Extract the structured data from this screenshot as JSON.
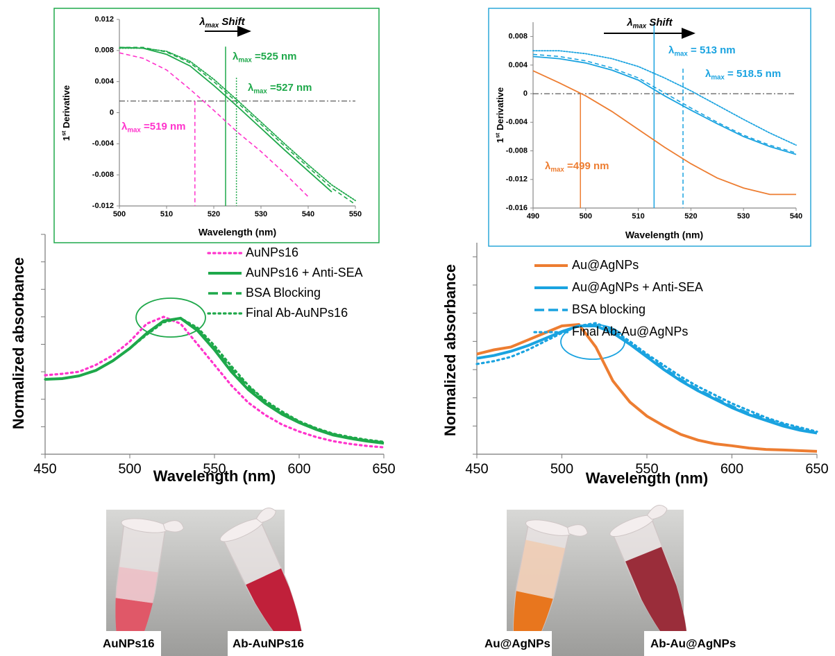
{
  "chart_data": [
    {
      "type": "line",
      "title": {
        "text": "λ",
        "sub": "max",
        "tail": " Shift"
      },
      "x_label": "Wavelength (nm)",
      "y_label": {
        "text": "1",
        "sup": "st",
        "tail": " Derivative"
      },
      "frame_color": "#1ea84a",
      "x": [
        500,
        505,
        510,
        515,
        520,
        525,
        530,
        535,
        540,
        545,
        550
      ],
      "xlim": [
        500,
        550
      ],
      "xticks": [
        500,
        510,
        520,
        530,
        540,
        550
      ],
      "ylim": [
        -0.012,
        0.012
      ],
      "yticks": [
        -0.012,
        -0.008,
        -0.004,
        0,
        0.004,
        0.008,
        0.012
      ],
      "hline": 0.0015,
      "series": [
        {
          "color": "#ff33cc",
          "style": "dashed",
          "values": [
            0.0077,
            0.007,
            0.0055,
            0.003,
            0.0003,
            -0.0025,
            -0.005,
            -0.0078,
            -0.0108,
            null,
            null
          ]
        },
        {
          "color": "#1ea84a",
          "style": "solid",
          "values": [
            0.0084,
            0.0083,
            0.0075,
            0.006,
            0.0035,
            0.0008,
            -0.002,
            -0.0048,
            -0.0075,
            -0.0102,
            null
          ]
        },
        {
          "color": "#1ea84a",
          "style": "dashed",
          "values": [
            0.0084,
            0.0084,
            0.0078,
            0.0064,
            0.004,
            0.0013,
            -0.0015,
            -0.0043,
            -0.007,
            -0.0097,
            -0.0118
          ]
        },
        {
          "color": "#1ea84a",
          "style": "dotted",
          "values": [
            0.0083,
            0.0083,
            0.0079,
            0.0066,
            0.0043,
            0.0016,
            -0.0012,
            -0.004,
            -0.0067,
            -0.0093,
            -0.0113
          ]
        }
      ],
      "annotations": [
        {
          "x": 516,
          "y1": 0.0015,
          "color": "#ff33cc",
          "style": "dashed",
          "label": {
            "text": "λ",
            "sub": "max",
            "tail": " =519 nm"
          }
        },
        {
          "x": 522.5,
          "y1": 0.0085,
          "color": "#1ea84a",
          "style": "solid",
          "label": {
            "text": "λ",
            "sub": "max",
            "tail": " =525 nm"
          }
        },
        {
          "x": 524.8,
          "y1": 0.0045,
          "color": "#1ea84a",
          "style": "dotted",
          "label": {
            "text": "λ",
            "sub": "max",
            "tail": " =527 nm"
          }
        }
      ]
    },
    {
      "type": "line",
      "title": {
        "text": "λ",
        "sub": "max",
        "tail": " Shift"
      },
      "x_label": "Wavelength (nm)",
      "y_label": {
        "text": "1",
        "sup": "st",
        "tail": " Derivative"
      },
      "frame_color": "#2aa7d8",
      "x": [
        490,
        495,
        500,
        505,
        510,
        515,
        520,
        525,
        530,
        535,
        540
      ],
      "xlim": [
        490,
        540
      ],
      "xticks": [
        490,
        500,
        510,
        520,
        530,
        540
      ],
      "ylim": [
        -0.016,
        0.01
      ],
      "yticks": [
        -0.016,
        -0.012,
        -0.008,
        -0.004,
        0,
        0.004,
        0.008
      ],
      "hline": 0,
      "series": [
        {
          "color": "#ed7d31",
          "style": "solid",
          "values": [
            0.0032,
            0.0015,
            -0.0003,
            -0.0025,
            -0.005,
            -0.0075,
            -0.0098,
            -0.0118,
            -0.0132,
            -0.0141,
            -0.0141
          ]
        },
        {
          "color": "#1aa3e0",
          "style": "solid",
          "values": [
            0.0052,
            0.0049,
            0.0043,
            0.0033,
            0.0019,
            -0.0003,
            -0.0023,
            -0.0042,
            -0.006,
            -0.0074,
            -0.0085
          ]
        },
        {
          "color": "#1aa3e0",
          "style": "dashed",
          "values": [
            0.0055,
            0.0052,
            0.0046,
            0.0036,
            0.0022,
            0.0001,
            -0.002,
            -0.004,
            -0.0058,
            -0.0072,
            -0.0083
          ]
        },
        {
          "color": "#1aa3e0",
          "style": "dotted",
          "values": [
            0.006,
            0.006,
            0.0056,
            0.0049,
            0.0038,
            0.0022,
            0.0004,
            -0.0016,
            -0.0036,
            -0.0055,
            -0.0072
          ]
        }
      ],
      "annotations": [
        {
          "x": 513,
          "y1": 0.01,
          "color": "#1aa3e0",
          "style": "solid",
          "label": {
            "text": "λ",
            "sub": "max",
            "tail": " = 513 nm"
          }
        },
        {
          "x": 518.5,
          "y1": 0.0035,
          "color": "#1aa3e0",
          "style": "dashed",
          "label": {
            "text": "λ",
            "sub": "max",
            "tail": " = 518.5 nm"
          }
        },
        {
          "x": 499,
          "y1": 0,
          "color": "#ed7d31",
          "style": "solid",
          "label": {
            "text": "λ",
            "sub": "max",
            "tail": " =499 nm"
          }
        }
      ]
    },
    {
      "type": "line",
      "x_label": "Wavelength (nm)",
      "y_label": "Normalized absorbance",
      "legend": "upper right",
      "x": [
        450,
        460,
        470,
        480,
        490,
        500,
        510,
        520,
        530,
        540,
        550,
        560,
        570,
        580,
        590,
        600,
        610,
        620,
        630,
        640,
        650
      ],
      "xlim": [
        450,
        650
      ],
      "xticks": [
        450,
        500,
        550,
        600,
        650
      ],
      "ylim": [
        0,
        1.6
      ],
      "yticks": [
        0,
        0.2,
        0.4,
        0.6,
        0.8,
        1,
        1.2,
        1.4,
        1.6
      ],
      "ytick_labels": false,
      "series": [
        {
          "name": "AuNPs16",
          "color": "#ff33cc",
          "style": "dotted",
          "values": [
            0.575,
            0.585,
            0.6,
            0.65,
            0.72,
            0.82,
            0.95,
            1.0,
            0.95,
            0.8,
            0.65,
            0.5,
            0.375,
            0.285,
            0.215,
            0.165,
            0.125,
            0.095,
            0.075,
            0.06,
            0.05
          ]
        },
        {
          "name": "AuNPs16 + Anti-SEA",
          "color": "#1ea84a",
          "style": "solid",
          "values": [
            0.545,
            0.55,
            0.57,
            0.61,
            0.68,
            0.77,
            0.88,
            0.97,
            0.99,
            0.9,
            0.76,
            0.6,
            0.47,
            0.37,
            0.29,
            0.23,
            0.18,
            0.14,
            0.115,
            0.095,
            0.08
          ]
        },
        {
          "name": "BSA Blocking",
          "color": "#1ea84a",
          "style": "dashed",
          "values": [
            0.545,
            0.55,
            0.57,
            0.61,
            0.68,
            0.77,
            0.88,
            0.97,
            0.99,
            0.91,
            0.77,
            0.62,
            0.49,
            0.38,
            0.3,
            0.235,
            0.185,
            0.145,
            0.12,
            0.1,
            0.085
          ]
        },
        {
          "name": "Final Ab-AuNPs16",
          "color": "#1ea84a",
          "style": "dotted",
          "values": [
            0.545,
            0.55,
            0.57,
            0.61,
            0.68,
            0.77,
            0.87,
            0.96,
            0.99,
            0.92,
            0.79,
            0.64,
            0.5,
            0.39,
            0.31,
            0.24,
            0.19,
            0.15,
            0.125,
            0.105,
            0.09
          ]
        }
      ]
    },
    {
      "type": "line",
      "x_label": "Wavelength (nm)",
      "y_label": "Normalized absorbance",
      "legend": "upper right",
      "x": [
        450,
        460,
        470,
        480,
        490,
        500,
        510,
        520,
        530,
        540,
        550,
        560,
        570,
        580,
        590,
        600,
        610,
        620,
        630,
        640,
        650
      ],
      "xlim": [
        450,
        650
      ],
      "xticks": [
        450,
        500,
        550,
        600,
        650
      ],
      "ylim": [
        0,
        1.5
      ],
      "yticks": [
        0,
        0.2,
        0.4,
        0.6,
        0.8,
        1,
        1.2,
        1.4
      ],
      "ytick_labels": false,
      "series": [
        {
          "name": "Au@AgNPs",
          "color": "#ed7d31",
          "style": "solid",
          "values": [
            0.71,
            0.74,
            0.76,
            0.81,
            0.86,
            0.91,
            0.92,
            0.76,
            0.52,
            0.37,
            0.27,
            0.2,
            0.14,
            0.1,
            0.074,
            0.06,
            0.044,
            0.034,
            0.03,
            0.025,
            0.02
          ]
        },
        {
          "name": "Au@AgNPs + Anti-SEA",
          "color": "#1aa3e0",
          "style": "solid",
          "values": [
            0.68,
            0.7,
            0.73,
            0.77,
            0.82,
            0.87,
            0.91,
            0.91,
            0.86,
            0.78,
            0.69,
            0.6,
            0.52,
            0.45,
            0.39,
            0.33,
            0.28,
            0.24,
            0.2,
            0.17,
            0.15
          ]
        },
        {
          "name": "BSA blocking",
          "color": "#1aa3e0",
          "style": "dashed",
          "values": [
            0.68,
            0.7,
            0.73,
            0.77,
            0.82,
            0.87,
            0.91,
            0.91,
            0.86,
            0.78,
            0.7,
            0.61,
            0.53,
            0.46,
            0.4,
            0.34,
            0.29,
            0.25,
            0.21,
            0.18,
            0.15
          ]
        },
        {
          "name": "Final Ab-Au@AgNPs",
          "color": "#1aa3e0",
          "style": "dotted",
          "values": [
            0.64,
            0.66,
            0.69,
            0.74,
            0.8,
            0.86,
            0.91,
            0.93,
            0.88,
            0.8,
            0.71,
            0.63,
            0.55,
            0.48,
            0.42,
            0.36,
            0.31,
            0.26,
            0.22,
            0.19,
            0.16
          ]
        }
      ]
    }
  ],
  "photos": [
    {
      "labels": [
        "AuNPs16",
        "Ab-AuNPs16"
      ]
    },
    {
      "labels": [
        "Au@AgNPs",
        "Ab-Au@AgNPs"
      ]
    }
  ]
}
